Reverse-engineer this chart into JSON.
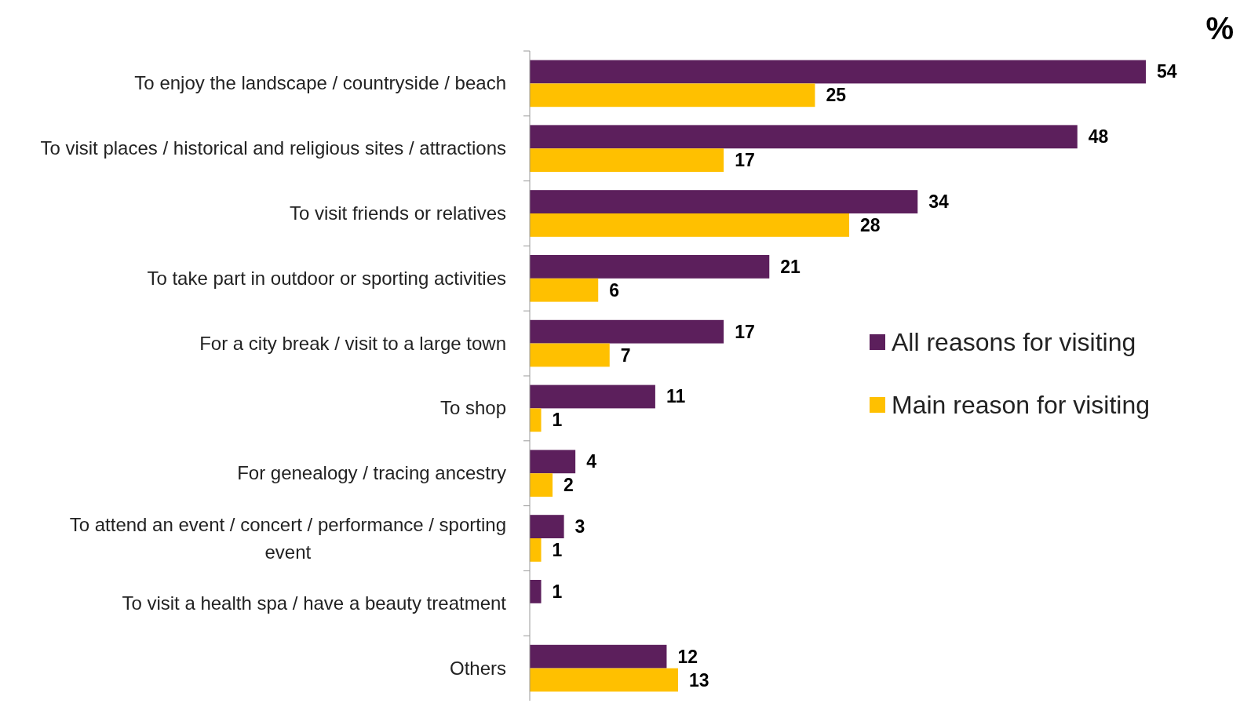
{
  "chart_data": {
    "type": "bar",
    "orientation": "horizontal",
    "data_labels": true,
    "legend": "right",
    "annotations": [
      "%"
    ],
    "categories": [
      "To enjoy the landscape / countryside / beach",
      "To visit places / historical and religious sites / attractions",
      "To visit friends or relatives",
      "To take part in outdoor or sporting activities",
      "For a city break / visit to a large town",
      "To shop",
      "For genealogy / tracing ancestry",
      "To attend an event / concert / performance / sporting event",
      "To visit a health spa / have a beauty treatment",
      "Others"
    ],
    "series": [
      {
        "name": "All reasons for visiting",
        "color": "#5c1f5c",
        "values": [
          54,
          48,
          34,
          21,
          17,
          11,
          4,
          3,
          1,
          12
        ]
      },
      {
        "name": "Main reason for visiting",
        "color": "#ffc000",
        "values": [
          25,
          17,
          28,
          6,
          7,
          1,
          2,
          1,
          null,
          13
        ]
      }
    ]
  }
}
